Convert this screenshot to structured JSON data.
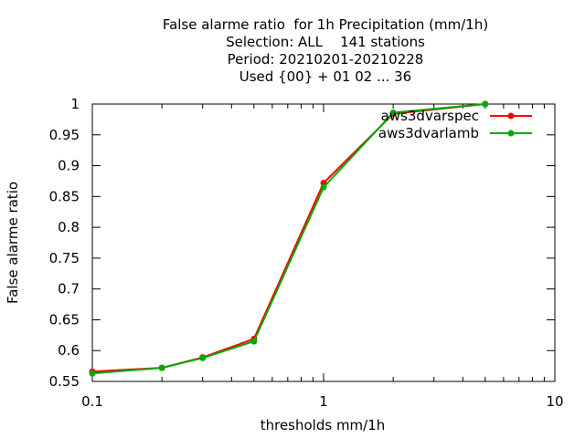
{
  "chart_data": {
    "type": "line",
    "title_lines": [
      "False alarme ratio  for 1h Precipitation (mm/1h)",
      "Selection: ALL    141 stations",
      "Period: 20210201-20210228",
      "Used {00} + 01 02 ... 36"
    ],
    "xlabel": "thresholds mm/1h",
    "ylabel": "False alarme ratio",
    "x_scale": "log",
    "xlim": [
      0.1,
      10
    ],
    "ylim": [
      0.55,
      1.0
    ],
    "x_ticks": [
      0.1,
      1,
      10
    ],
    "x_tick_labels": [
      "0.1",
      "1",
      "10"
    ],
    "y_ticks": [
      0.55,
      0.6,
      0.65,
      0.7,
      0.75,
      0.8,
      0.85,
      0.9,
      0.95,
      1.0
    ],
    "y_tick_labels": [
      "0.55",
      "0.6",
      "0.65",
      "0.7",
      "0.75",
      "0.8",
      "0.85",
      "0.9",
      "0.95",
      "1"
    ],
    "grid": false,
    "legend_position": "top-right",
    "x": [
      0.1,
      0.2,
      0.3,
      0.5,
      1,
      2,
      5
    ],
    "series": [
      {
        "name": "aws3dvarspec",
        "color": "#ff0000",
        "values": [
          0.566,
          0.572,
          0.589,
          0.619,
          0.872,
          0.984,
          1.0
        ]
      },
      {
        "name": "aws3dvarlamb",
        "color": "#00aa00",
        "values": [
          0.563,
          0.572,
          0.588,
          0.615,
          0.865,
          0.986,
          1.0
        ]
      }
    ]
  }
}
